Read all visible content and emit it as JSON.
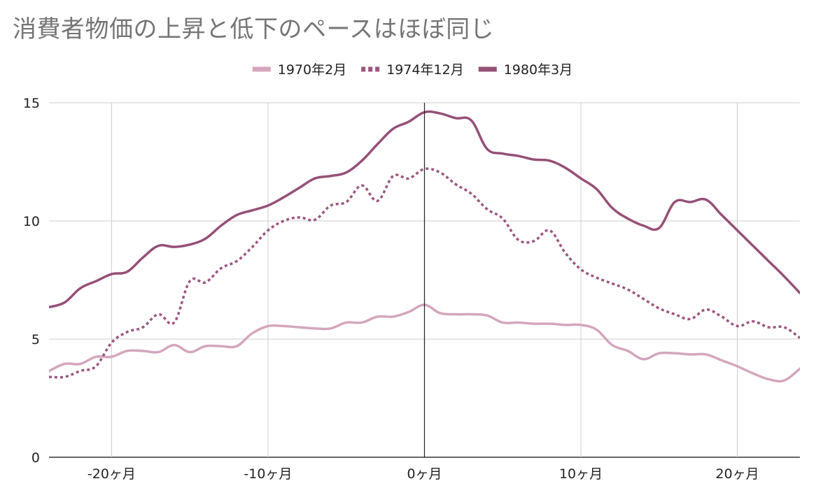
{
  "chart_data": {
    "type": "line",
    "title": "消費者物価の上昇と低下のペースはほぼ同じ",
    "xlabel": "",
    "ylabel": "",
    "xlim": [
      -24,
      24
    ],
    "ylim": [
      0,
      15
    ],
    "x_ticks": [
      -20,
      -10,
      0,
      10,
      20
    ],
    "x_tick_labels": [
      "-20ヶ月",
      "-10ヶ月",
      "0ヶ月",
      "10ヶ月",
      "20ヶ月"
    ],
    "y_ticks": [
      0,
      5,
      10,
      15
    ],
    "y_tick_labels": [
      "0",
      "5",
      "10",
      "15"
    ],
    "grid": true,
    "legend_position": "top-center",
    "vertical_reference_line_at_x": 0,
    "x": [
      -24,
      -23,
      -22,
      -21,
      -20,
      -19,
      -18,
      -17,
      -16,
      -15,
      -14,
      -13,
      -12,
      -11,
      -10,
      -9,
      -8,
      -7,
      -6,
      -5,
      -4,
      -3,
      -2,
      -1,
      0,
      1,
      2,
      3,
      4,
      5,
      6,
      7,
      8,
      9,
      10,
      11,
      12,
      13,
      14,
      15,
      16,
      17,
      18,
      19,
      20,
      21,
      22,
      23,
      24
    ],
    "series": [
      {
        "name": "1970年2月",
        "color": "#d4a6bd",
        "dash": "solid",
        "values": [
          3.65,
          3.95,
          3.95,
          4.25,
          4.25,
          4.5,
          4.5,
          4.45,
          4.75,
          4.45,
          4.7,
          4.7,
          4.7,
          5.25,
          5.55,
          5.55,
          5.5,
          5.45,
          5.45,
          5.7,
          5.7,
          5.95,
          5.95,
          6.15,
          6.45,
          6.1,
          6.05,
          6.05,
          6.0,
          5.7,
          5.7,
          5.65,
          5.65,
          5.6,
          5.6,
          5.4,
          4.75,
          4.5,
          4.15,
          4.4,
          4.4,
          4.35,
          4.35,
          4.1,
          3.85,
          3.55,
          3.3,
          3.25,
          3.75
        ]
      },
      {
        "name": "1974年12月",
        "color": "#9c5680",
        "dash": "dotted",
        "values": [
          3.4,
          3.4,
          3.65,
          3.85,
          4.85,
          5.3,
          5.5,
          6.05,
          5.7,
          7.45,
          7.4,
          8.0,
          8.3,
          8.9,
          9.6,
          10.0,
          10.15,
          10.05,
          10.65,
          10.8,
          11.5,
          10.85,
          11.9,
          11.8,
          12.2,
          12.05,
          11.55,
          11.15,
          10.5,
          10.1,
          9.2,
          9.15,
          9.6,
          8.65,
          7.95,
          7.6,
          7.35,
          7.1,
          6.7,
          6.3,
          6.05,
          5.85,
          6.25,
          5.95,
          5.55,
          5.75,
          5.5,
          5.5,
          5.05
        ]
      },
      {
        "name": "1980年3月",
        "color": "#955077",
        "dash": "solid",
        "values": [
          6.35,
          6.55,
          7.15,
          7.45,
          7.75,
          7.85,
          8.45,
          8.95,
          8.9,
          9.0,
          9.25,
          9.8,
          10.25,
          10.45,
          10.65,
          11.0,
          11.4,
          11.8,
          11.9,
          12.05,
          12.55,
          13.25,
          13.9,
          14.2,
          14.6,
          14.55,
          14.35,
          14.25,
          13.05,
          12.85,
          12.75,
          12.6,
          12.55,
          12.25,
          11.8,
          11.35,
          10.55,
          10.1,
          9.8,
          9.7,
          10.8,
          10.8,
          10.9,
          10.25,
          9.6,
          8.95,
          8.3,
          7.65,
          6.95
        ]
      }
    ]
  }
}
